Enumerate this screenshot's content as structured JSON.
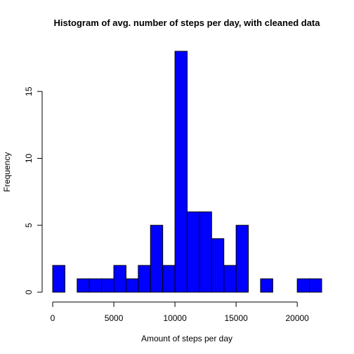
{
  "chart_data": {
    "type": "bar",
    "title": "Histogram of avg. number of steps per day, with cleaned data",
    "xlabel": "Amount of steps per day",
    "ylabel": "Frequency",
    "bin_width": 1000,
    "bin_starts": [
      0,
      1000,
      2000,
      3000,
      4000,
      5000,
      6000,
      7000,
      8000,
      9000,
      10000,
      11000,
      12000,
      13000,
      14000,
      15000,
      16000,
      17000,
      18000,
      19000,
      20000,
      21000
    ],
    "values": [
      2,
      0,
      1,
      1,
      1,
      2,
      1,
      2,
      5,
      2,
      18,
      6,
      6,
      4,
      2,
      5,
      0,
      1,
      0,
      0,
      1,
      1
    ],
    "xlim": [
      0,
      22000
    ],
    "ylim": [
      0,
      18
    ],
    "xticks": [
      0,
      5000,
      10000,
      15000,
      20000
    ],
    "xtick_labels": [
      "0",
      "5000",
      "10000",
      "15000",
      "20000"
    ],
    "yticks": [
      0,
      5,
      10,
      15
    ],
    "ytick_labels": [
      "0",
      "5",
      "10",
      "15"
    ],
    "bar_color": "#0000ff",
    "bar_border_color": "#000000",
    "grid": false,
    "legend": "none"
  }
}
